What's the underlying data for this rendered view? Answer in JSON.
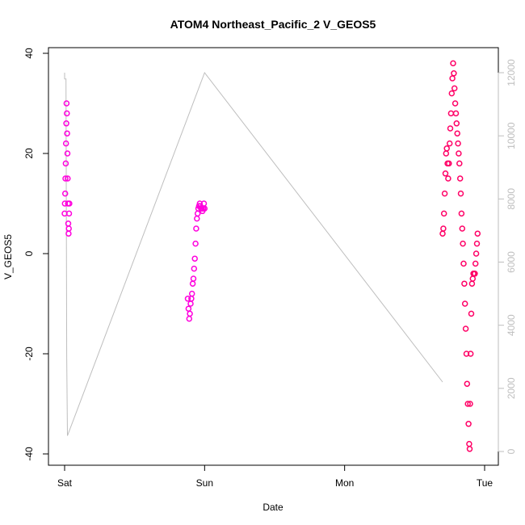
{
  "chart_data": {
    "type": "scatter",
    "title": "ATOM4 Northeast_Pacific_2 V_GEOS5",
    "xlabel": "Date",
    "ylabel": "V_GEOS5",
    "x_ticks": [
      {
        "label": "Sat",
        "value": 0
      },
      {
        "label": "Sun",
        "value": 1
      },
      {
        "label": "Mon",
        "value": 2
      },
      {
        "label": "Tue",
        "value": 3
      }
    ],
    "ylim": [
      -40,
      40
    ],
    "y_ticks": [
      -40,
      -20,
      0,
      20,
      40
    ],
    "y2lim": [
      0,
      12000
    ],
    "y2_ticks": [
      0,
      2000,
      4000,
      6000,
      8000,
      10000,
      12000
    ],
    "colors": {
      "points_early": "#ff00dd",
      "points_late": "#ff0066",
      "secondary_line": "#bebebe",
      "axis": "#000000"
    },
    "series": [
      {
        "kind": "points",
        "color": "#ff00dd",
        "points": [
          [
            0.0,
            8
          ],
          [
            0.002,
            10
          ],
          [
            0.004,
            12
          ],
          [
            0.006,
            15
          ],
          [
            0.008,
            18
          ],
          [
            0.01,
            22
          ],
          [
            0.012,
            26
          ],
          [
            0.014,
            30
          ],
          [
            0.016,
            28
          ],
          [
            0.018,
            24
          ],
          [
            0.02,
            20
          ],
          [
            0.022,
            15
          ],
          [
            0.024,
            10
          ],
          [
            0.026,
            6
          ],
          [
            0.028,
            4
          ],
          [
            0.03,
            5
          ],
          [
            0.032,
            8
          ],
          [
            0.034,
            10
          ]
        ]
      },
      {
        "kind": "points",
        "color": "#ff00dd",
        "points": [
          [
            0.88,
            -9
          ],
          [
            0.885,
            -11
          ],
          [
            0.89,
            -13
          ],
          [
            0.895,
            -12
          ],
          [
            0.9,
            -10
          ],
          [
            0.905,
            -9
          ],
          [
            0.91,
            -8
          ],
          [
            0.915,
            -6
          ],
          [
            0.92,
            -5
          ],
          [
            0.925,
            -3
          ],
          [
            0.93,
            -1
          ],
          [
            0.935,
            2
          ],
          [
            0.94,
            5
          ],
          [
            0.945,
            7
          ],
          [
            0.95,
            8
          ],
          [
            0.955,
            9
          ],
          [
            0.96,
            9.5
          ],
          [
            0.965,
            10
          ],
          [
            0.97,
            9.5
          ],
          [
            0.975,
            9
          ],
          [
            0.98,
            9
          ],
          [
            0.985,
            8.5
          ],
          [
            0.99,
            9
          ],
          [
            0.995,
            10
          ],
          [
            1.0,
            9
          ]
        ]
      },
      {
        "kind": "points",
        "color": "#ff0066",
        "points": [
          [
            2.7,
            4
          ],
          [
            2.705,
            5
          ],
          [
            2.71,
            8
          ],
          [
            2.715,
            12
          ],
          [
            2.72,
            16
          ],
          [
            2.725,
            20
          ],
          [
            2.73,
            21
          ],
          [
            2.735,
            18
          ],
          [
            2.74,
            15
          ],
          [
            2.745,
            18
          ],
          [
            2.75,
            22
          ],
          [
            2.755,
            25
          ],
          [
            2.76,
            28
          ],
          [
            2.765,
            32
          ],
          [
            2.77,
            35
          ],
          [
            2.775,
            38
          ],
          [
            2.78,
            36
          ],
          [
            2.785,
            33
          ],
          [
            2.79,
            30
          ],
          [
            2.795,
            28
          ],
          [
            2.8,
            26
          ],
          [
            2.805,
            24
          ],
          [
            2.81,
            22
          ],
          [
            2.815,
            20
          ],
          [
            2.82,
            18
          ],
          [
            2.825,
            15
          ],
          [
            2.83,
            12
          ],
          [
            2.835,
            8
          ],
          [
            2.84,
            5
          ],
          [
            2.845,
            2
          ],
          [
            2.85,
            -2
          ],
          [
            2.855,
            -6
          ],
          [
            2.86,
            -10
          ],
          [
            2.865,
            -15
          ],
          [
            2.87,
            -20
          ],
          [
            2.875,
            -26
          ],
          [
            2.88,
            -30
          ],
          [
            2.885,
            -34
          ],
          [
            2.89,
            -38
          ],
          [
            2.893,
            -39
          ],
          [
            2.896,
            -30
          ],
          [
            2.9,
            -20
          ],
          [
            2.905,
            -12
          ],
          [
            2.91,
            -6
          ],
          [
            2.915,
            -5
          ],
          [
            2.92,
            -4
          ],
          [
            2.925,
            -4
          ],
          [
            2.93,
            -4
          ],
          [
            2.935,
            -2
          ],
          [
            2.94,
            0
          ],
          [
            2.945,
            2
          ],
          [
            2.95,
            4
          ]
        ]
      },
      {
        "kind": "line",
        "color": "#bebebe",
        "axis": "right",
        "points": [
          [
            0.0,
            12000
          ],
          [
            0.0,
            11800
          ],
          [
            0.005,
            11800
          ],
          [
            0.01,
            11800
          ],
          [
            0.015,
            3000
          ],
          [
            0.02,
            500
          ],
          [
            1.0,
            12000
          ],
          [
            2.7,
            2200
          ]
        ]
      }
    ]
  }
}
